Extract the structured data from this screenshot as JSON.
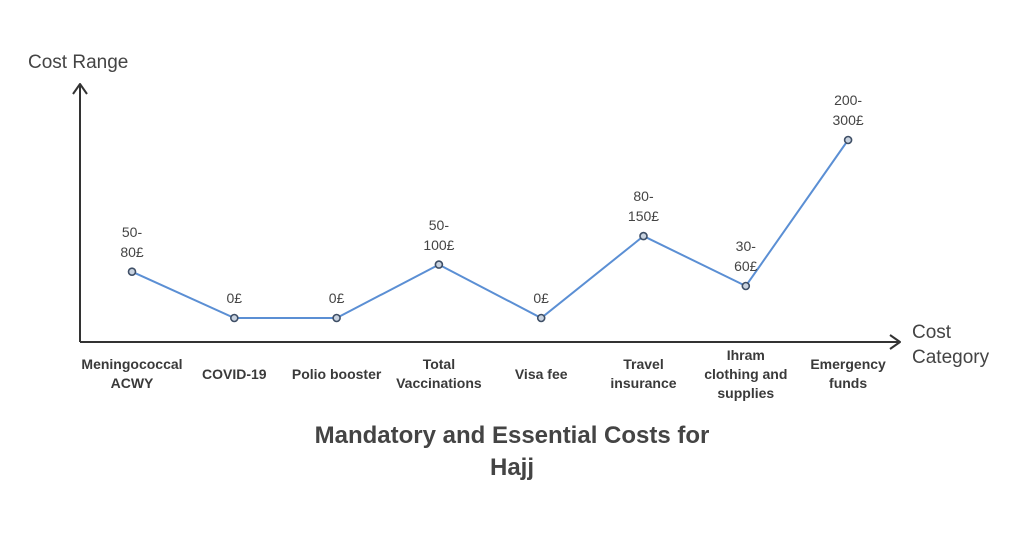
{
  "chart_data": {
    "type": "line",
    "title_lines": [
      "Mandatory and Essential Costs for",
      "Hajj"
    ],
    "ylabel": "Cost Range",
    "xlabel_lines": [
      "Cost",
      "Category"
    ],
    "categories": [
      [
        "Meningococcal",
        "ACWY"
      ],
      [
        "COVID-19"
      ],
      [
        "Polio booster"
      ],
      [
        "Total",
        "Vaccinations"
      ],
      [
        "Visa fee"
      ],
      [
        "Travel",
        "insurance"
      ],
      [
        "Ihram",
        "clothing and",
        "supplies"
      ],
      [
        "Emergency",
        "funds"
      ]
    ],
    "labels": [
      [
        "50-",
        "80£"
      ],
      [
        "0£"
      ],
      [
        "0£"
      ],
      [
        "50-",
        "100£"
      ],
      [
        "0£"
      ],
      [
        "80-",
        "150£"
      ],
      [
        "30-",
        "60£"
      ],
      [
        "200-",
        "300£"
      ]
    ],
    "values": [
      65,
      0,
      0,
      75,
      0,
      115,
      45,
      250
    ],
    "units": "£",
    "grid": false,
    "line_color": "#5b8fd4",
    "marker_fill": "#c9d3e0",
    "marker_stroke": "#3f4f66",
    "axis_color": "#333333"
  }
}
